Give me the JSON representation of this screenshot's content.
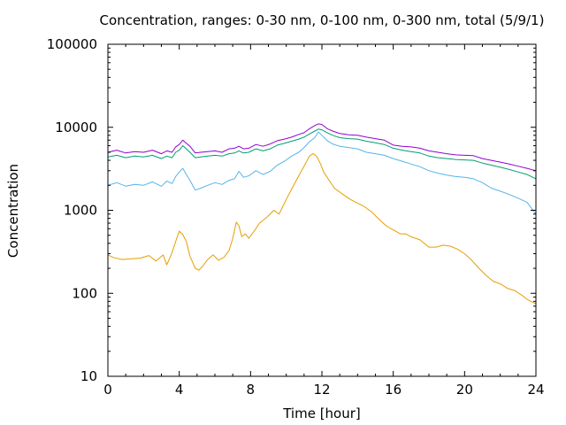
{
  "chart_data": {
    "type": "line",
    "title": "Concentration, ranges: 0-30 nm, 0-100 nm, 0-300 nm, total (5/9/1)",
    "xlabel": "Time [hour]",
    "ylabel": "Concentration",
    "xlim": [
      0,
      24
    ],
    "ylim": [
      10,
      100000
    ],
    "yscale": "log",
    "grid": false,
    "xticks": [
      0,
      4,
      8,
      12,
      16,
      20,
      24
    ],
    "xtick_labels": [
      "0",
      "4",
      "8",
      "12",
      "16",
      "20",
      "24"
    ],
    "yticks": [
      10,
      100,
      1000,
      10000,
      100000
    ],
    "ytick_labels": [
      "10",
      "100",
      "1000",
      "10000",
      "100000"
    ],
    "series": [
      {
        "color": "#e69f00",
        "x": [
          0,
          0.3,
          0.8,
          1.3,
          1.8,
          2.3,
          2.7,
          3.1,
          3.3,
          3.6,
          3.8,
          4.0,
          4.2,
          4.4,
          4.6,
          4.9,
          5.1,
          5.3,
          5.6,
          5.9,
          6.2,
          6.5,
          6.8,
          7.0,
          7.2,
          7.35,
          7.5,
          7.7,
          7.9,
          8.2,
          8.5,
          8.9,
          9.3,
          9.6,
          9.8,
          10.0,
          10.3,
          10.7,
          11.0,
          11.3,
          11.5,
          11.7,
          11.9,
          12.1,
          12.4,
          12.7,
          13.1,
          13.6,
          14.0,
          14.4,
          14.8,
          15.2,
          15.6,
          16.0,
          16.4,
          16.7,
          17.0,
          17.5,
          18.0,
          18.4,
          18.8,
          19.2,
          19.6,
          20.0,
          20.4,
          20.8,
          21.2,
          21.6,
          22.0,
          22.4,
          22.8,
          23.2,
          23.5,
          23.7,
          24.0
        ],
        "y": [
          290,
          270,
          255,
          260,
          265,
          285,
          245,
          290,
          220,
          310,
          420,
          560,
          510,
          420,
          280,
          200,
          190,
          210,
          255,
          290,
          250,
          270,
          330,
          460,
          720,
          650,
          480,
          520,
          460,
          560,
          700,
          820,
          1000,
          900,
          1100,
          1350,
          1800,
          2600,
          3400,
          4500,
          4800,
          4500,
          3700,
          2900,
          2300,
          1850,
          1600,
          1350,
          1220,
          1100,
          950,
          780,
          650,
          580,
          520,
          520,
          480,
          440,
          360,
          360,
          380,
          370,
          340,
          300,
          250,
          200,
          165,
          140,
          130,
          115,
          108,
          95,
          85,
          80,
          75
        ]
      },
      {
        "color": "#56b4e9",
        "x": [
          0,
          0.5,
          1.0,
          1.5,
          2.0,
          2.5,
          3.0,
          3.3,
          3.6,
          3.8,
          4.0,
          4.2,
          4.4,
          4.6,
          4.9,
          5.2,
          5.6,
          6.0,
          6.4,
          6.8,
          7.1,
          7.35,
          7.6,
          7.9,
          8.3,
          8.7,
          9.1,
          9.5,
          9.9,
          10.3,
          10.7,
          11.0,
          11.3,
          11.6,
          11.8,
          12.0,
          12.3,
          12.6,
          13.0,
          13.5,
          14.0,
          14.5,
          15.0,
          15.5,
          16.0,
          16.5,
          17.0,
          17.5,
          18.0,
          18.5,
          19.0,
          19.5,
          20.0,
          20.5,
          21.0,
          21.5,
          22.0,
          22.5,
          23.0,
          23.5,
          24.0
        ],
        "y": [
          2000,
          2150,
          1950,
          2050,
          2000,
          2200,
          1950,
          2250,
          2100,
          2550,
          2900,
          3200,
          2700,
          2300,
          1750,
          1850,
          2000,
          2150,
          2050,
          2300,
          2400,
          2950,
          2500,
          2600,
          3000,
          2700,
          2950,
          3500,
          3900,
          4500,
          5000,
          5700,
          6700,
          7500,
          8800,
          8000,
          6900,
          6300,
          5900,
          5700,
          5500,
          5000,
          4800,
          4600,
          4200,
          3900,
          3600,
          3350,
          3000,
          2800,
          2650,
          2550,
          2500,
          2400,
          2150,
          1850,
          1700,
          1550,
          1400,
          1250,
          900
        ]
      },
      {
        "color": "#009e73",
        "x": [
          0,
          0.5,
          1.0,
          1.5,
          2.0,
          2.5,
          3.0,
          3.3,
          3.6,
          3.8,
          4.0,
          4.2,
          4.4,
          4.6,
          4.9,
          5.2,
          5.6,
          6.0,
          6.4,
          6.8,
          7.1,
          7.35,
          7.6,
          7.9,
          8.3,
          8.7,
          9.1,
          9.5,
          9.9,
          10.3,
          10.7,
          11.0,
          11.3,
          11.6,
          11.8,
          12.0,
          12.3,
          12.6,
          13.0,
          13.5,
          14.0,
          14.5,
          15.0,
          15.5,
          16.0,
          16.5,
          17.0,
          17.5,
          18.0,
          18.5,
          19.0,
          19.5,
          20.0,
          20.5,
          21.0,
          21.5,
          22.0,
          22.5,
          23.0,
          23.5,
          24.0
        ],
        "y": [
          4400,
          4600,
          4300,
          4500,
          4400,
          4600,
          4200,
          4500,
          4300,
          5000,
          5300,
          6000,
          5500,
          5000,
          4300,
          4400,
          4500,
          4600,
          4500,
          4800,
          4900,
          5200,
          4900,
          5000,
          5500,
          5200,
          5500,
          6100,
          6400,
          6800,
          7200,
          7600,
          8300,
          9000,
          9500,
          9300,
          8600,
          8000,
          7500,
          7300,
          7200,
          6800,
          6500,
          6200,
          5600,
          5300,
          5100,
          4900,
          4500,
          4300,
          4200,
          4100,
          4050,
          4000,
          3700,
          3500,
          3300,
          3100,
          2900,
          2700,
          2400
        ]
      },
      {
        "color": "#9400d3",
        "x": [
          0,
          0.5,
          1.0,
          1.5,
          2.0,
          2.5,
          3.0,
          3.3,
          3.6,
          3.8,
          4.0,
          4.2,
          4.4,
          4.6,
          4.9,
          5.2,
          5.6,
          6.0,
          6.4,
          6.8,
          7.1,
          7.35,
          7.6,
          7.9,
          8.3,
          8.7,
          9.1,
          9.5,
          9.9,
          10.3,
          10.7,
          11.0,
          11.3,
          11.6,
          11.8,
          12.0,
          12.3,
          12.6,
          13.0,
          13.5,
          14.0,
          14.5,
          15.0,
          15.5,
          16.0,
          16.5,
          17.0,
          17.5,
          18.0,
          18.5,
          19.0,
          19.5,
          20.0,
          20.5,
          21.0,
          21.5,
          22.0,
          22.5,
          23.0,
          23.5,
          24.0
        ],
        "y": [
          5000,
          5300,
          4900,
          5100,
          5000,
          5300,
          4800,
          5200,
          5000,
          5800,
          6200,
          7000,
          6400,
          5900,
          4900,
          5000,
          5100,
          5200,
          5000,
          5500,
          5600,
          5900,
          5500,
          5600,
          6200,
          5900,
          6300,
          6900,
          7200,
          7600,
          8200,
          8600,
          9600,
          10500,
          11000,
          10800,
          9600,
          9000,
          8400,
          8100,
          8000,
          7600,
          7300,
          7000,
          6100,
          5900,
          5800,
          5600,
          5200,
          5000,
          4800,
          4650,
          4600,
          4550,
          4200,
          4000,
          3800,
          3600,
          3400,
          3200,
          3000
        ]
      }
    ]
  }
}
